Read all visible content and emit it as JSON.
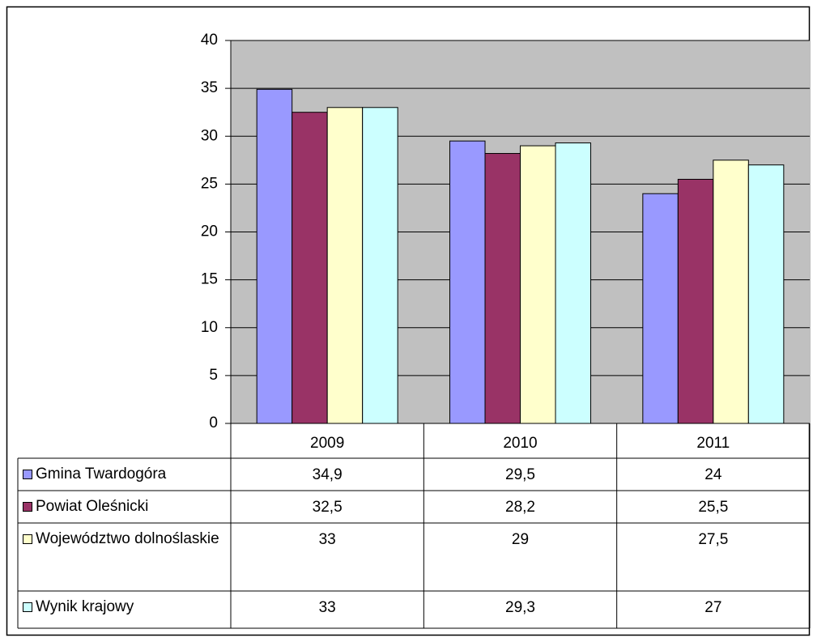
{
  "chart_data": {
    "type": "bar",
    "categories": [
      "2009",
      "2010",
      "2011"
    ],
    "series": [
      {
        "name": "Gmina Twardogóra",
        "color": "#9999ff",
        "values": [
          34.9,
          29.5,
          24
        ],
        "value_labels": [
          "34,9",
          "29,5",
          "24"
        ]
      },
      {
        "name": "Powiat Oleśnicki",
        "color": "#993366",
        "values": [
          32.5,
          28.2,
          25.5
        ],
        "value_labels": [
          "32,5",
          "28,2",
          "25,5"
        ]
      },
      {
        "name": "Województwo dolnoślaskie",
        "color": "#ffffcc",
        "values": [
          33,
          29,
          27.5
        ],
        "value_labels": [
          "33",
          "29",
          "27,5"
        ]
      },
      {
        "name": "Wynik krajowy",
        "color": "#ccffff",
        "values": [
          33,
          29.3,
          27
        ],
        "value_labels": [
          "33",
          "29,3",
          "27"
        ]
      }
    ],
    "ylim": [
      0,
      40
    ],
    "yticks": [
      0,
      5,
      10,
      15,
      20,
      25,
      30,
      35,
      40
    ],
    "grid": true,
    "plot_background": "#c0c0c0"
  }
}
